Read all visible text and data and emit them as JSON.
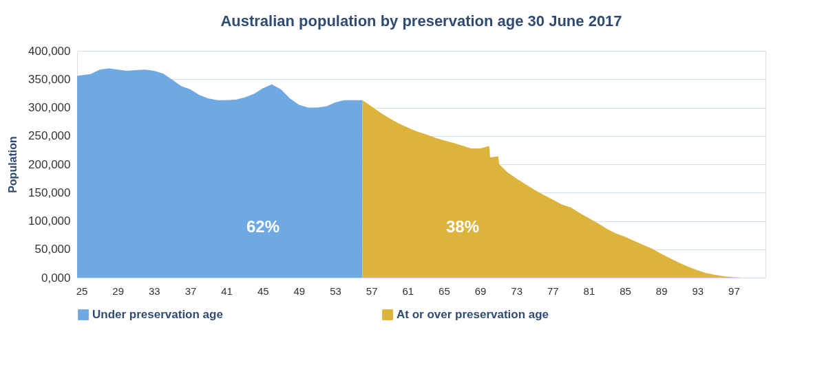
{
  "chart_data": {
    "type": "area",
    "title": "Australian population by preservation age 30 June 2017",
    "ylabel": "Population",
    "xlim": [
      24.5,
      100.5
    ],
    "xticks": [
      25,
      29,
      33,
      37,
      41,
      45,
      49,
      53,
      57,
      61,
      65,
      69,
      73,
      77,
      81,
      85,
      89,
      93,
      97
    ],
    "ylim": [
      0,
      400000
    ],
    "yticks": [
      {
        "value": 0,
        "label": "0,000"
      },
      {
        "value": 50000,
        "label": "50,000"
      },
      {
        "value": 100000,
        "label": "100,000"
      },
      {
        "value": 150000,
        "label": "150,000"
      },
      {
        "value": 200000,
        "label": "200,000"
      },
      {
        "value": 250000,
        "label": "250,000"
      },
      {
        "value": 300000,
        "label": "300,000"
      },
      {
        "value": 350000,
        "label": "350,000"
      },
      {
        "value": 400000,
        "label": "400,000"
      }
    ],
    "grid": "y",
    "legend": "bottom",
    "series": [
      {
        "name": "Under preservation age",
        "color": "#6fa9e3",
        "x": [
          24.5,
          25,
          26,
          27,
          28,
          29,
          30,
          31,
          32,
          33,
          34,
          35,
          36,
          37,
          38,
          39,
          40,
          41,
          42,
          43,
          44,
          45,
          46,
          47,
          48,
          49,
          50,
          51,
          52,
          53,
          54,
          55,
          56
        ],
        "values": [
          356000,
          357000,
          359000,
          367000,
          369000,
          367000,
          365000,
          366000,
          367000,
          365000,
          360000,
          349000,
          338000,
          332000,
          322000,
          316000,
          313000,
          313000,
          314000,
          318000,
          324000,
          334000,
          341000,
          332000,
          316000,
          305000,
          300000,
          300000,
          302000,
          309000,
          313000,
          313000,
          313000
        ]
      },
      {
        "name": "At or over preservation age",
        "color": "#dcb33b",
        "x": [
          56,
          57,
          58,
          59,
          60,
          61,
          62,
          63,
          64,
          65,
          66,
          67,
          68,
          69,
          70,
          70.1,
          71,
          71.1,
          72,
          73,
          74,
          75,
          76,
          77,
          78,
          79,
          80,
          81,
          82,
          83,
          84,
          85,
          86,
          87,
          88,
          89,
          90,
          91,
          92,
          93,
          94,
          95,
          96,
          97,
          98
        ],
        "values": [
          313000,
          302000,
          291000,
          281000,
          272000,
          265000,
          258000,
          253000,
          247000,
          242000,
          238000,
          233000,
          228000,
          228000,
          232000,
          212000,
          214000,
          200000,
          186000,
          175000,
          165000,
          155000,
          146000,
          138000,
          129000,
          124000,
          114000,
          105000,
          96000,
          86000,
          78000,
          72000,
          65000,
          58000,
          51000,
          42000,
          34000,
          26000,
          19000,
          13000,
          8000,
          5000,
          2000,
          1000,
          0
        ]
      }
    ],
    "annotations": [
      "62%",
      "38%"
    ]
  }
}
